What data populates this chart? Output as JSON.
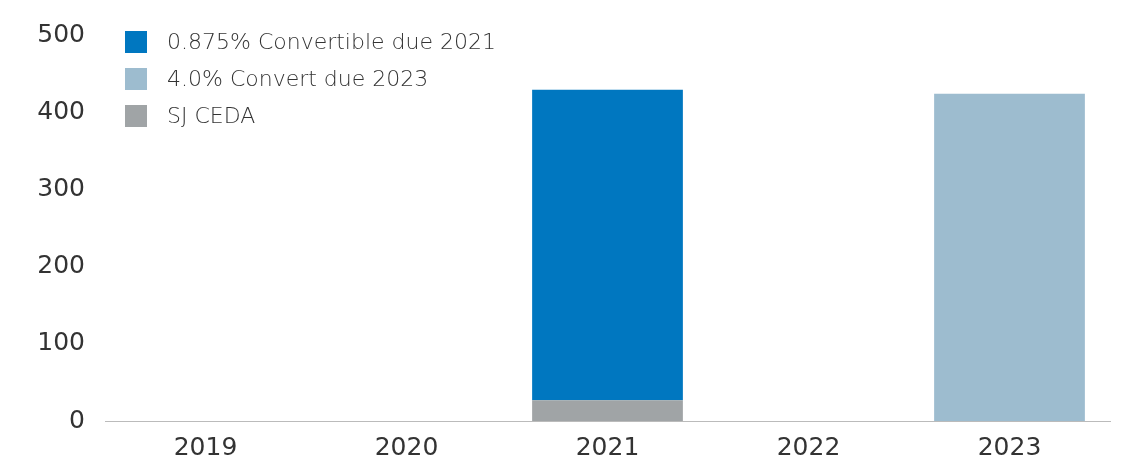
{
  "chart_data": {
    "type": "bar",
    "stacked": true,
    "categories": [
      "2019",
      "2020",
      "2021",
      "2022",
      "2023"
    ],
    "series": [
      {
        "name": "SJ CEDA",
        "color": "#a0a4a6",
        "values": [
          0,
          0,
          27,
          0,
          0
        ]
      },
      {
        "name": "0.875% Convertible due 2021",
        "color": "#0077c0",
        "values": [
          0,
          0,
          402,
          0,
          0
        ]
      },
      {
        "name": "4.0% Convert due 2023",
        "color": "#9dbccf",
        "values": [
          0,
          0,
          0,
          0,
          424
        ]
      }
    ],
    "ylim": [
      0,
      500
    ],
    "yticks": [
      0,
      100,
      200,
      300,
      400,
      500
    ],
    "grid": false,
    "legend": "top left"
  }
}
